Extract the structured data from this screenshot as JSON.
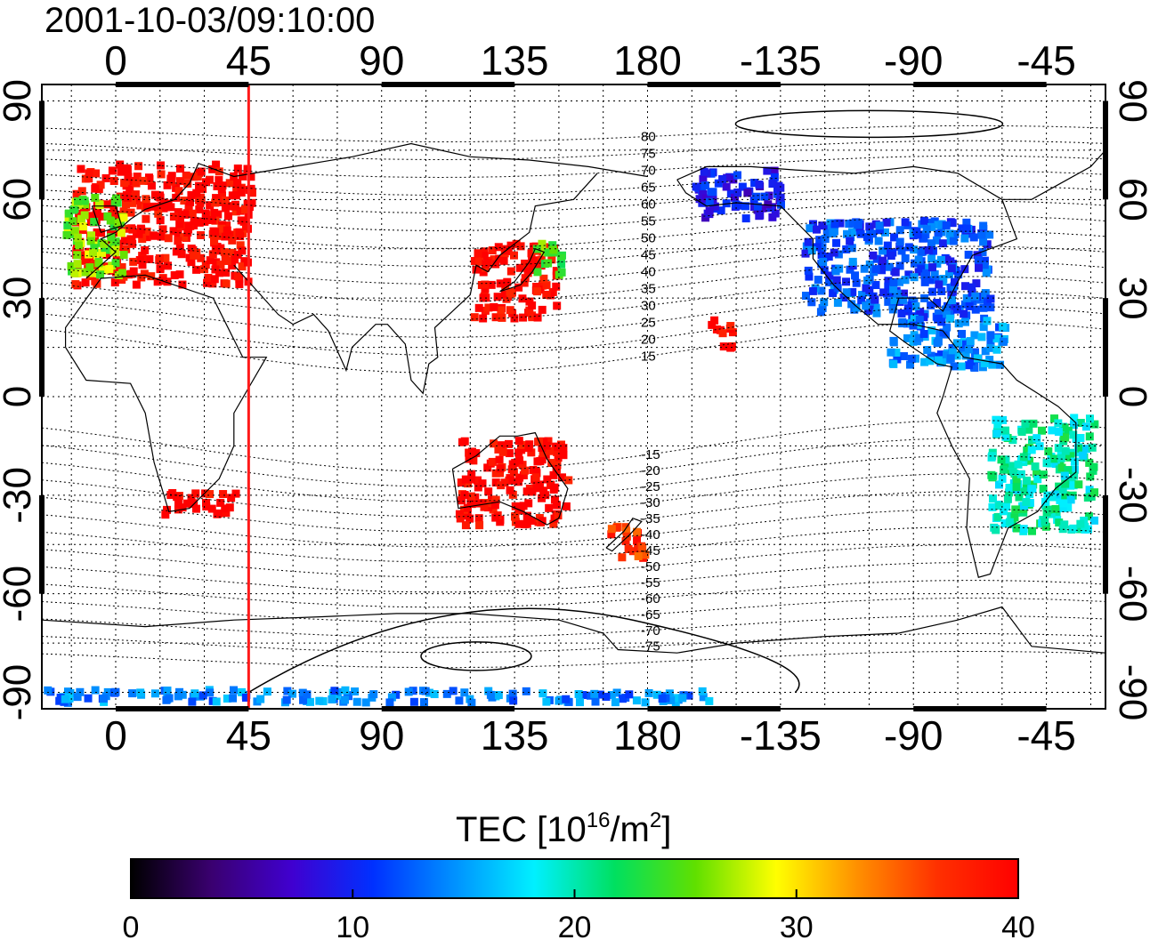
{
  "header": {
    "timestamp": "2001-10-03/09:10:00"
  },
  "map": {
    "lon_range": [
      -25,
      335
    ],
    "lat_range": [
      -95,
      95
    ],
    "lon_ticks": [
      {
        "pos": 0,
        "label": "0"
      },
      {
        "pos": 45,
        "label": "45"
      },
      {
        "pos": 90,
        "label": "90"
      },
      {
        "pos": 135,
        "label": "135"
      },
      {
        "pos": 180,
        "label": "180"
      },
      {
        "pos": 225,
        "label": "-135"
      },
      {
        "pos": 270,
        "label": "-90"
      },
      {
        "pos": 315,
        "label": "-45"
      }
    ],
    "lat_ticks": [
      {
        "pos": 90,
        "label": "90"
      },
      {
        "pos": 60,
        "label": "60"
      },
      {
        "pos": 30,
        "label": "30"
      },
      {
        "pos": 0,
        "label": "0"
      },
      {
        "pos": -30,
        "label": "-30"
      },
      {
        "pos": -60,
        "label": "-60"
      },
      {
        "pos": -90,
        "label": "-90"
      }
    ],
    "meridian_marker_lon": 45,
    "marker_color": "#ff1a1a",
    "mag_lat_labels_north": [
      "80",
      "75",
      "70",
      "65",
      "60",
      "55",
      "50",
      "45",
      "40",
      "35",
      "30",
      "25",
      "20",
      "15"
    ],
    "mag_lat_labels_south": [
      "-15",
      "-20",
      "-25",
      "-30",
      "-35",
      "-40",
      "-45",
      "-50",
      "-55",
      "-60",
      "-65",
      "-70",
      "-75"
    ]
  },
  "colorbar": {
    "title": "TEC  [10",
    "title_exp": "16",
    "title_mid": "/m",
    "title_exp2": "2",
    "title_end": "]",
    "min": 0,
    "max": 40,
    "tick_labels": [
      "0",
      "10",
      "20",
      "30",
      "40"
    ],
    "colors": [
      "#000000",
      "#3a0070",
      "#4000d0",
      "#0030ff",
      "#0090ff",
      "#00f0ff",
      "#00e060",
      "#60e000",
      "#ffff00",
      "#ff9000",
      "#ff3000",
      "#ff0000"
    ]
  },
  "tec_regions": [
    {
      "name": "europe",
      "lon": [
        -15,
        45
      ],
      "lat": [
        35,
        72
      ],
      "tec": 40
    },
    {
      "name": "w-europe",
      "lon": [
        -18,
        2
      ],
      "lat": [
        38,
        62
      ],
      "tec": 26
    },
    {
      "name": "east-asia",
      "lon": [
        120,
        148
      ],
      "lat": [
        25,
        48
      ],
      "tec": 40
    },
    {
      "name": "japan-north",
      "lon": [
        140,
        150
      ],
      "lat": [
        38,
        48
      ],
      "tec": 25
    },
    {
      "name": "australia",
      "lon": [
        115,
        152
      ],
      "lat": [
        -38,
        -12
      ],
      "tec": 40
    },
    {
      "name": "nz",
      "lon": [
        166,
        178
      ],
      "lat": [
        -48,
        -38
      ],
      "tec": 37
    },
    {
      "name": "north-america",
      "lon": [
        232,
        295
      ],
      "lat": [
        25,
        55
      ],
      "tec": 12
    },
    {
      "name": "alaska",
      "lon": [
        195,
        225
      ],
      "lat": [
        55,
        70
      ],
      "tec": 9
    },
    {
      "name": "caribbean",
      "lon": [
        260,
        300
      ],
      "lat": [
        10,
        25
      ],
      "tec": 14
    },
    {
      "name": "south-america",
      "lon": [
        295,
        330
      ],
      "lat": [
        -40,
        -5
      ],
      "tec": 20
    },
    {
      "name": "antarctica",
      "lon": [
        -25,
        200
      ],
      "lat": [
        -92,
        -88
      ],
      "tec": 14
    },
    {
      "name": "africa-south",
      "lon": [
        15,
        40
      ],
      "lat": [
        -35,
        -28
      ],
      "tec": 40
    },
    {
      "name": "hawaii",
      "lon": [
        200,
        208
      ],
      "lat": [
        16,
        25
      ],
      "tec": 40
    }
  ]
}
